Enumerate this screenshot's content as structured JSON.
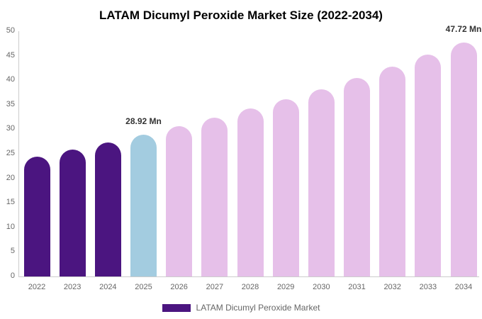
{
  "chart_data": {
    "type": "bar",
    "title": "LATAM Dicumyl Peroxide Market Size (2022-2034)",
    "categories": [
      "2022",
      "2023",
      "2024",
      "2025",
      "2026",
      "2027",
      "2028",
      "2029",
      "2030",
      "2031",
      "2032",
      "2033",
      "2034"
    ],
    "values": [
      24.47,
      25.87,
      27.35,
      28.92,
      30.58,
      32.33,
      34.18,
      36.14,
      38.21,
      40.4,
      42.71,
      45.16,
      47.72
    ],
    "unit": "Mn",
    "bar_colors": [
      "#4B1580",
      "#4B1580",
      "#4B1580",
      "#A3CCE0",
      "#E6C0E9",
      "#E6C0E9",
      "#E6C0E9",
      "#E6C0E9",
      "#E6C0E9",
      "#E6C0E9",
      "#E6C0E9",
      "#E6C0E9",
      "#E6C0E9"
    ],
    "ylim": [
      0,
      50
    ],
    "yticks": [
      0,
      5,
      10,
      15,
      20,
      25,
      30,
      35,
      40,
      45,
      50
    ],
    "grid": false,
    "legend_position": "bottom",
    "annotations": [
      {
        "category": "2025",
        "text": "28.92 Mn"
      },
      {
        "category": "2034",
        "text": "47.72 Mn"
      }
    ]
  },
  "legend": {
    "label": "LATAM Dicumyl Peroxide Market",
    "swatch_color": "#4B1580"
  },
  "colors": {
    "bar_historical": "#4B1580",
    "bar_base_year": "#A3CCE0",
    "bar_forecast": "#E6C0E9",
    "axis_line": "#cccccc",
    "tick_text": "#666666",
    "data_label_text": "#333333"
  }
}
